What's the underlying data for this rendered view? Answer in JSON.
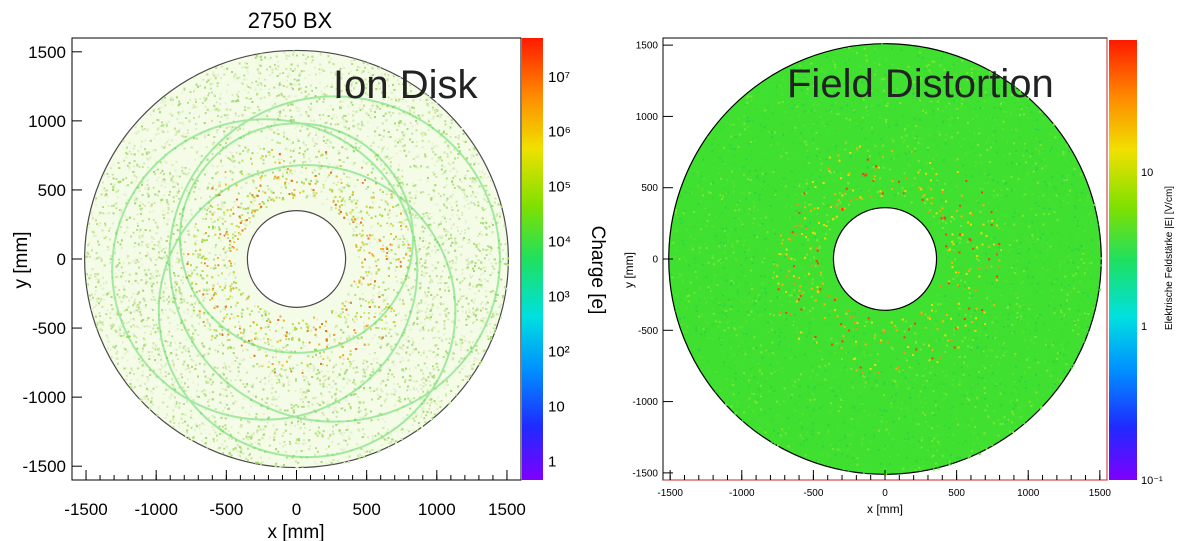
{
  "chart_data": [
    {
      "type": "heatmap",
      "title": "2750 BX",
      "annotation": "Ion Disk",
      "xlabel": "x [mm]",
      "ylabel": "y [mm]",
      "zlabel": "Charge [e]",
      "xlim": [
        -1600,
        1600
      ],
      "ylim": [
        -1600,
        1600
      ],
      "x_ticks": [
        "-1500",
        "-1000",
        "-500",
        "0",
        "500",
        "1000",
        "1500"
      ],
      "y_ticks": [
        "1500",
        "1000",
        "500",
        "0",
        "-500",
        "-1000",
        "-1500"
      ],
      "z_scale": "log",
      "z_ticks": [
        "10⁷",
        "10⁶",
        "10⁵",
        "10⁴",
        "10³",
        "10²",
        "10",
        "1"
      ],
      "outer_radius_mm": 1510,
      "inner_radius_mm": 350,
      "grid": false
    },
    {
      "type": "heatmap",
      "title": "",
      "annotation": "Field Distortion",
      "xlabel": "x [mm]",
      "ylabel": "y [mm]",
      "zlabel": "Elektrische Feldstärke |E| [V/cm]",
      "xlim": [
        -1550,
        1550
      ],
      "ylim": [
        -1550,
        1550
      ],
      "x_ticks": [
        "-1500",
        "-1000",
        "-500",
        "0",
        "500",
        "1000",
        "1500"
      ],
      "y_ticks": [
        "1500",
        "1000",
        "500",
        "0",
        "-500",
        "-1000",
        "-1500"
      ],
      "z_scale": "log",
      "z_ticks": [
        "10",
        "1",
        "10⁻¹"
      ],
      "outer_radius_mm": 1510,
      "inner_radius_mm": 360,
      "grid": false
    }
  ]
}
